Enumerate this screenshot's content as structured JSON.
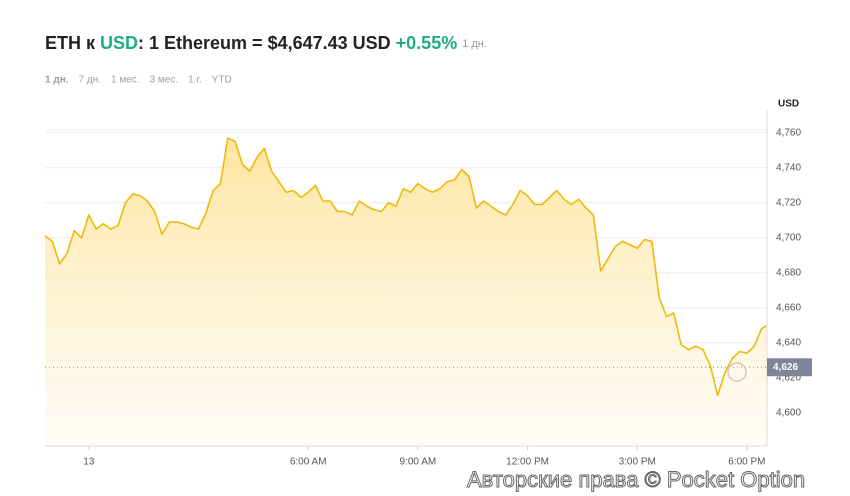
{
  "chart_data": {
    "type": "area",
    "title": [
      "ETH к",
      "USD",
      ": 1 Ethereum = $4,647.43 USD",
      "+0.55%",
      "1 дн."
    ],
    "range_tabs": [
      "1 дн.",
      "7 дн.",
      "1 мес.",
      "3 мес.",
      "1 г.",
      "YTD"
    ],
    "active_tab": 0,
    "y_unit": "USD",
    "color": "#f0b90b",
    "x": [
      -1.2,
      -1.0,
      -0.8,
      -0.6,
      -0.4,
      -0.2,
      0,
      0.2,
      0.4,
      0.6,
      0.8,
      1.0,
      1.2,
      1.4,
      1.6,
      1.8,
      2.0,
      2.2,
      2.4,
      2.6,
      2.8,
      3.0,
      3.2,
      3.4,
      3.6,
      3.8,
      4.0,
      4.2,
      4.4,
      4.6,
      4.8,
      5.0,
      5.2,
      5.4,
      5.6,
      5.8,
      6.0,
      6.2,
      6.4,
      6.6,
      6.8,
      7.0,
      7.2,
      7.4,
      7.6,
      7.8,
      8.0,
      8.2,
      8.4,
      8.6,
      8.8,
      9.0,
      9.2,
      9.4,
      9.6,
      9.8,
      10.0,
      10.2,
      10.4,
      10.6,
      10.8,
      11.0,
      11.2,
      11.4,
      11.6,
      11.8,
      12.0,
      12.2,
      12.4,
      12.6,
      12.8,
      13.0,
      13.2,
      13.4,
      13.6,
      13.8,
      14.0,
      14.2,
      14.4,
      14.6,
      14.8,
      15.0,
      15.2,
      15.4,
      15.6,
      15.8,
      16.0,
      16.2,
      16.4,
      16.6,
      16.8,
      17.0,
      17.2,
      17.4,
      17.6,
      17.8,
      18.0,
      18.2,
      18.4,
      18.55
    ],
    "values": [
      4701,
      4698,
      4685,
      4691,
      4704,
      4700,
      4713,
      4705,
      4708,
      4705,
      4707,
      4720,
      4725,
      4724,
      4721,
      4715,
      4702,
      4709,
      4709,
      4708,
      4706,
      4705,
      4714,
      4727,
      4731,
      4757,
      4755,
      4742,
      4738,
      4746,
      4751,
      4738,
      4732,
      4726,
      4727,
      4723,
      4726,
      4730,
      4721,
      4721,
      4715,
      4715,
      4713,
      4721,
      4718,
      4716,
      4715,
      4720,
      4718,
      4728,
      4726,
      4731,
      4728,
      4726,
      4728,
      4732,
      4733,
      4739,
      4735,
      4717,
      4721,
      4718,
      4715,
      4713,
      4719,
      4727,
      4724,
      4719,
      4719,
      4723,
      4727,
      4722,
      4719,
      4722,
      4717,
      4713,
      4681,
      4688,
      4695,
      4698,
      4696,
      4694,
      4699,
      4698,
      4666,
      4655,
      4657,
      4639,
      4636,
      4638,
      4636,
      4627,
      4610,
      4623,
      4631,
      4635,
      4634,
      4638,
      4648,
      4650
    ],
    "xlim": [
      -1.2,
      18.55
    ],
    "xticks": [
      {
        "value": 0,
        "label": "13"
      },
      {
        "value": 6,
        "label": "6:00 AM"
      },
      {
        "value": 9,
        "label": "9:00 AM"
      },
      {
        "value": 12,
        "label": "12:00 PM"
      },
      {
        "value": 15,
        "label": "3:00 PM"
      },
      {
        "value": 18,
        "label": "6:00 PM"
      }
    ],
    "ylim": [
      4581,
      4773
    ],
    "yticks": [
      {
        "value": 4600,
        "label": "4,600"
      },
      {
        "value": 4620,
        "label": "4,620"
      },
      {
        "value": 4640,
        "label": "4,640"
      },
      {
        "value": 4660,
        "label": "4,660"
      },
      {
        "value": 4680,
        "label": "4,680"
      },
      {
        "value": 4700,
        "label": "4,700"
      },
      {
        "value": 4720,
        "label": "4,720"
      },
      {
        "value": 4740,
        "label": "4,740"
      },
      {
        "value": 4760,
        "label": "4,760"
      }
    ],
    "grid": true,
    "reference_line": {
      "value": 4626,
      "label": "4,626"
    },
    "watermark": "Авторские права © Pocket Option"
  }
}
